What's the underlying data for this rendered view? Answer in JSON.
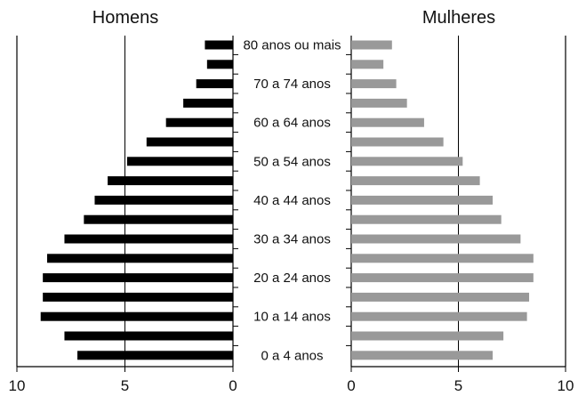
{
  "chart_data": {
    "type": "bar",
    "layout": "population-pyramid",
    "panels": {
      "left": {
        "title": "Homens",
        "color": "#000000"
      },
      "right": {
        "title": "Mulheres",
        "color": "#999999"
      }
    },
    "xlim": [
      0,
      10
    ],
    "x_ticks": [
      "10",
      "5",
      "0",
      "0",
      "5",
      "10"
    ],
    "gridlines_at": [
      5
    ],
    "categories": [
      "80 anos ou mais",
      "75 a 79 anos",
      "70 a 74 anos",
      "65 a 69 anos",
      "60 a 64 anos",
      "55 a 59 anos",
      "50 a 54 anos",
      "45 a 49 anos",
      "40 a 44 anos",
      "35 a 39 anos",
      "30 a 34 anos",
      "25 a 29 anos",
      "20 a 24 anos",
      "15 a 19 anos",
      "10 a 14 anos",
      "5 a 9 anos",
      "0 a 4 anos"
    ],
    "labeled_categories": [
      "80 anos ou mais",
      "70 a 74 anos",
      "60 a 64 anos",
      "50 a 54 anos",
      "40 a 44 anos",
      "30 a 34 anos",
      "20 a 24 anos",
      "10 a 14 anos",
      "0 a 4 anos"
    ],
    "series": [
      {
        "name": "Homens",
        "values": [
          1.3,
          1.2,
          1.7,
          2.3,
          3.1,
          4.0,
          4.9,
          5.8,
          6.4,
          6.9,
          7.8,
          8.6,
          8.8,
          8.8,
          8.9,
          7.8,
          7.2
        ]
      },
      {
        "name": "Mulheres",
        "values": [
          1.9,
          1.5,
          2.1,
          2.6,
          3.4,
          4.3,
          5.2,
          6.0,
          6.6,
          7.0,
          7.9,
          8.5,
          8.5,
          8.3,
          8.2,
          7.1,
          6.6
        ]
      }
    ]
  }
}
